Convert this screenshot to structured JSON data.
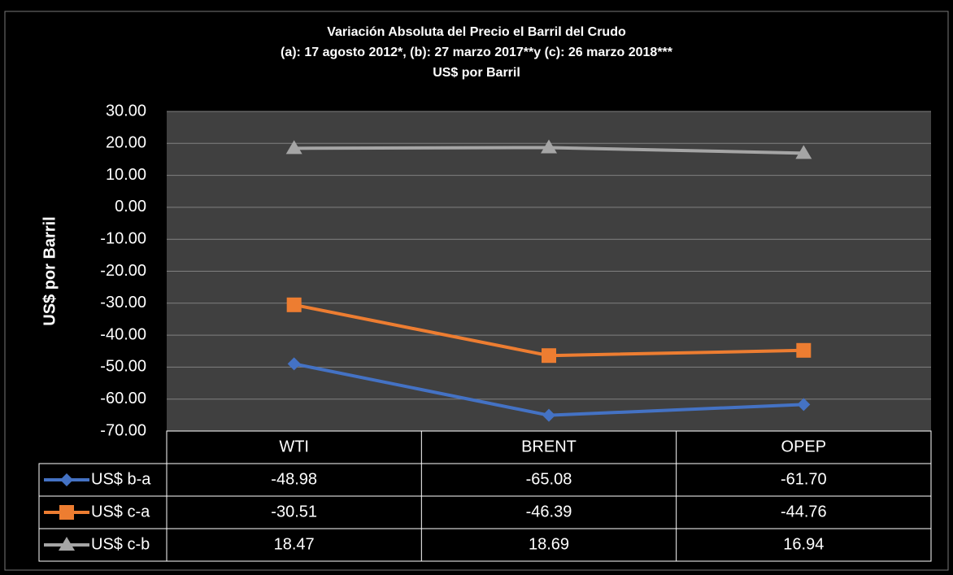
{
  "chart_data": {
    "type": "line",
    "title_lines": [
      "Variación Absoluta del Precio el Barril del Crudo",
      "(a): 17 agosto 2012*, (b): 27 marzo 2017**y (c): 26 marzo 2018***",
      "US$ por Barril"
    ],
    "y_label": "US$ por Barril",
    "categories": [
      "WTI",
      "BRENT",
      "OPEP"
    ],
    "series": [
      {
        "name": "US$ b-a",
        "color": "#4472c4",
        "marker": "diamond",
        "values": [
          -48.98,
          -65.08,
          -61.7
        ],
        "value_labels": [
          "-48.98",
          "-65.08",
          "-61.70"
        ]
      },
      {
        "name": "US$ c-a",
        "color": "#ed7d31",
        "marker": "square",
        "values": [
          -30.51,
          -46.39,
          -44.76
        ],
        "value_labels": [
          "-30.51",
          "-46.39",
          "-44.76"
        ]
      },
      {
        "name": "US$ c-b",
        "color": "#a5a5a5",
        "marker": "triangle",
        "values": [
          18.47,
          18.69,
          16.94
        ],
        "value_labels": [
          "18.47",
          "18.69",
          "16.94"
        ]
      }
    ],
    "ylim": [
      -70,
      30
    ],
    "yticks": [
      {
        "value": 30,
        "label": "30.00"
      },
      {
        "value": 20,
        "label": "20.00"
      },
      {
        "value": 10,
        "label": "10.00"
      },
      {
        "value": 0,
        "label": "0.00"
      },
      {
        "value": -10,
        "label": "-10.00"
      },
      {
        "value": -20,
        "label": "-20.00"
      },
      {
        "value": -30,
        "label": "-30.00"
      },
      {
        "value": -40,
        "label": "-40.00"
      },
      {
        "value": -50,
        "label": "-50.00"
      },
      {
        "value": -60,
        "label": "-60.00"
      },
      {
        "value": -70,
        "label": "-70.00"
      }
    ],
    "grid": true
  }
}
